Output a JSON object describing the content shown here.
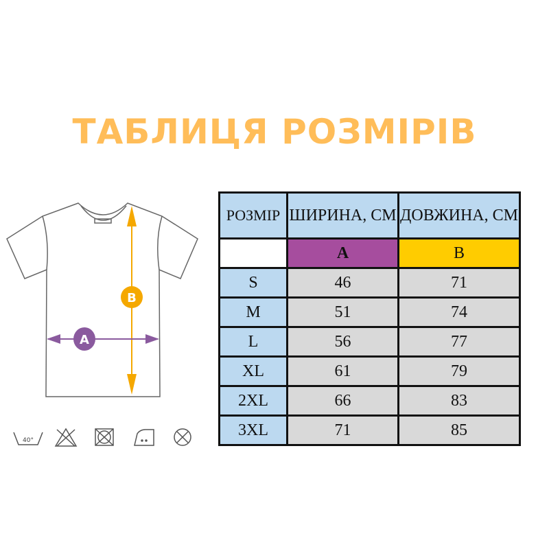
{
  "title": "ТАБЛИЦЯ РОЗМІРІВ",
  "colors": {
    "title": "#ffbd59",
    "a": "#a64d9e",
    "b": "#ffcc00",
    "header": "#bcd9f0",
    "cell": "#d9d9d9"
  },
  "diagram": {
    "label_a": "A",
    "label_b": "B"
  },
  "care_icons": [
    {
      "name": "wash-40-icon",
      "text": "40°"
    },
    {
      "name": "no-bleach-icon"
    },
    {
      "name": "no-tumble-dry-icon"
    },
    {
      "name": "iron-medium-icon"
    },
    {
      "name": "no-dry-clean-icon"
    }
  ],
  "table": {
    "headers": [
      "РОЗМІР",
      "ШИРИНА, СМ",
      "ДОВЖИНА, СМ"
    ],
    "sub": [
      "",
      "A",
      "B"
    ],
    "rows": [
      [
        "S",
        "46",
        "71"
      ],
      [
        "M",
        "51",
        "74"
      ],
      [
        "L",
        "56",
        "77"
      ],
      [
        "XL",
        "61",
        "79"
      ],
      [
        "2XL",
        "66",
        "83"
      ],
      [
        "3XL",
        "71",
        "85"
      ]
    ]
  }
}
